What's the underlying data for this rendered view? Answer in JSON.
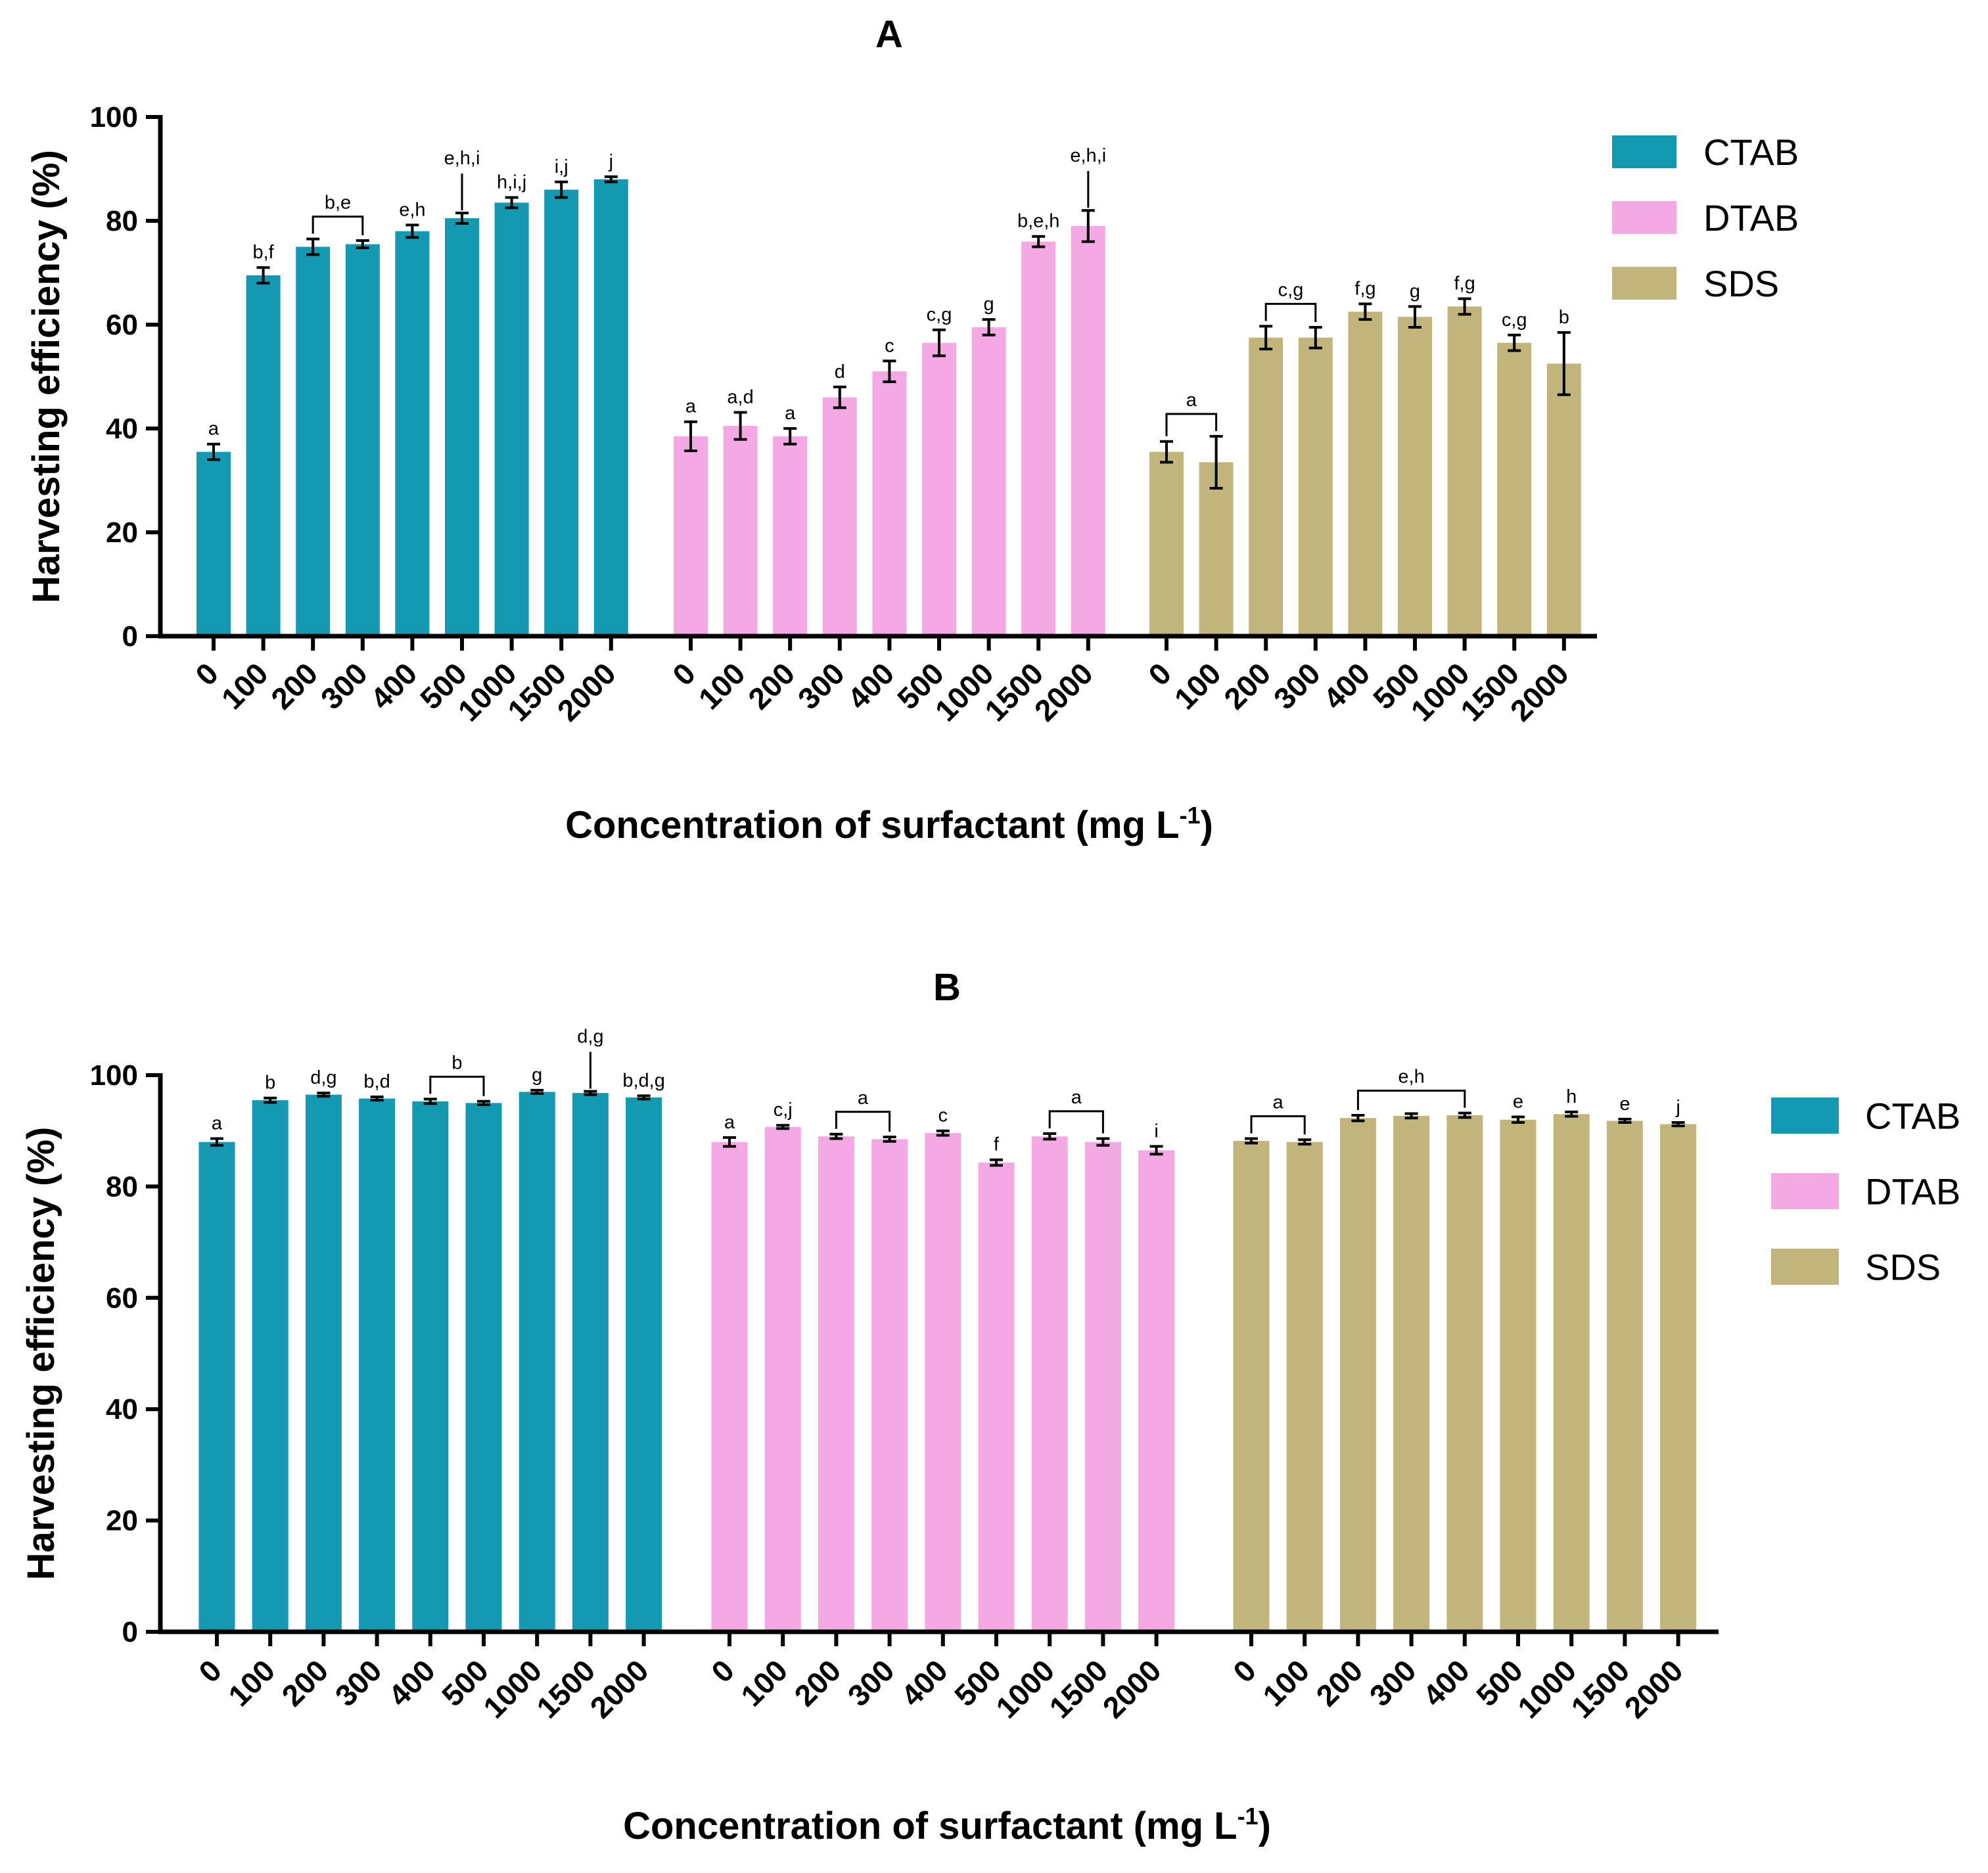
{
  "colors": {
    "CTAB": "#1499b3",
    "DTAB": "#f4a9e4",
    "SDS": "#c2b57c",
    "axis": "#000000"
  },
  "chart_data": [
    {
      "panel": "A",
      "type": "bar",
      "title": "A",
      "xlabel": "Concentration of surfactant (mg L",
      "xlabel_superscript": "-1",
      "xlabel_close": ")",
      "ylabel": "Harvesting efficiency (%)",
      "ylim": [
        0,
        100
      ],
      "yticks": [
        "0",
        "20",
        "40",
        "60",
        "80",
        "100"
      ],
      "categories": [
        "0",
        "100",
        "200",
        "300",
        "400",
        "500",
        "1000",
        "1500",
        "2000"
      ],
      "legend": [
        "CTAB",
        "DTAB",
        "SDS"
      ],
      "series": [
        {
          "name": "CTAB",
          "values": [
            35.5,
            69.5,
            75.0,
            75.5,
            78.0,
            80.5,
            83.5,
            86.0,
            88.0
          ],
          "errors": [
            1.5,
            1.5,
            1.5,
            0.7,
            1.2,
            1.0,
            1.0,
            1.5,
            0.5
          ],
          "labels": [
            "a",
            "b,f",
            "b,e",
            "",
            "e,h",
            "e,h,i",
            "h,i,j",
            "i,j",
            "j"
          ]
        },
        {
          "name": "DTAB",
          "values": [
            38.5,
            40.5,
            38.5,
            46.0,
            51.0,
            56.5,
            59.5,
            76.0,
            79.0
          ],
          "errors": [
            2.8,
            2.6,
            1.5,
            2.0,
            2.0,
            2.5,
            1.5,
            1.0,
            3.0
          ],
          "labels": [
            "a",
            "a,d",
            "a",
            "d",
            "c",
            "c,g",
            "g",
            "b,e,h",
            "e,h,i"
          ]
        },
        {
          "name": "SDS",
          "values": [
            35.5,
            33.5,
            57.5,
            57.5,
            62.5,
            61.5,
            63.5,
            56.5,
            52.5
          ],
          "errors": [
            2.0,
            5.0,
            2.2,
            2.0,
            1.5,
            2.0,
            1.5,
            1.5,
            6.0
          ],
          "labels": [
            "a",
            "",
            "c,g",
            "",
            "f,g",
            "g",
            "f,g",
            "c,g",
            "b"
          ]
        }
      ]
    },
    {
      "panel": "B",
      "type": "bar",
      "title": "B",
      "xlabel": "Concentration of surfactant (mg L",
      "xlabel_superscript": "-1",
      "xlabel_close": ")",
      "ylabel": "Harvesting efficiency (%)",
      "ylim": [
        0,
        100
      ],
      "yticks": [
        "0",
        "20",
        "40",
        "60",
        "80",
        "100"
      ],
      "categories": [
        "0",
        "100",
        "200",
        "300",
        "400",
        "500",
        "1000",
        "1500",
        "2000"
      ],
      "legend": [
        "CTAB",
        "DTAB",
        "SDS"
      ],
      "series": [
        {
          "name": "CTAB",
          "values": [
            88.0,
            95.5,
            96.5,
            95.8,
            95.3,
            95.0,
            97.0,
            96.8,
            96.0
          ],
          "errors": [
            0.6,
            0.4,
            0.3,
            0.3,
            0.4,
            0.3,
            0.3,
            0.3,
            0.3
          ],
          "labels": [
            "a",
            "b",
            "d,g",
            "b,d",
            "b",
            "",
            "g",
            "d,g",
            "b,d,g"
          ]
        },
        {
          "name": "DTAB",
          "values": [
            88.0,
            90.7,
            89.0,
            88.5,
            89.6,
            84.3,
            89.0,
            88.0,
            86.5
          ],
          "errors": [
            0.8,
            0.3,
            0.4,
            0.4,
            0.4,
            0.5,
            0.5,
            0.6,
            0.7
          ],
          "labels": [
            "a",
            "c,j",
            "a",
            "",
            "c",
            "f",
            "a",
            "",
            "i"
          ]
        },
        {
          "name": "SDS",
          "values": [
            88.2,
            88.0,
            92.3,
            92.7,
            92.8,
            92.0,
            93.0,
            91.8,
            91.2
          ],
          "errors": [
            0.4,
            0.4,
            0.5,
            0.4,
            0.4,
            0.5,
            0.4,
            0.3,
            0.3
          ],
          "labels": [
            "a",
            "",
            "e,h",
            "",
            "",
            "e",
            "h",
            "e",
            "j"
          ]
        }
      ]
    }
  ]
}
